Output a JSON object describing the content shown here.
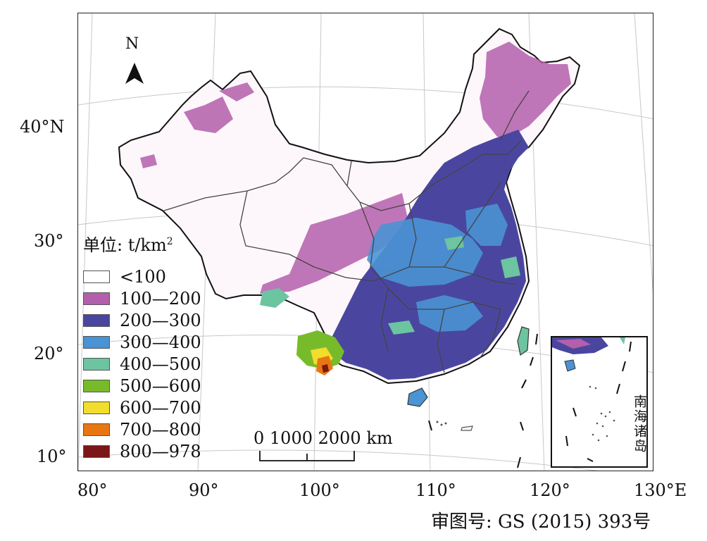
{
  "map": {
    "north_label": "N",
    "latitude_labels": [
      "40°N",
      "30°",
      "20°",
      "10°"
    ],
    "longitude_labels": [
      "80°",
      "90°",
      "100°",
      "110°",
      "120°",
      "130°E"
    ]
  },
  "legend": {
    "title": "单位: t/km",
    "title_superscript": "2",
    "items": [
      {
        "label": "<100",
        "color": "#ffffff"
      },
      {
        "label": "100—200",
        "color": "#b45fab"
      },
      {
        "label": "200—300",
        "color": "#4a46a0"
      },
      {
        "label": "300—400",
        "color": "#4a93d4"
      },
      {
        "label": "400—500",
        "color": "#6cc4a0"
      },
      {
        "label": "500—600",
        "color": "#77bb2a"
      },
      {
        "label": "600—700",
        "color": "#f2dd2c"
      },
      {
        "label": "700—800",
        "color": "#e87713"
      },
      {
        "label": "800—978",
        "color": "#7c1717"
      }
    ]
  },
  "scale_bar": {
    "labels": "0   1000 2000 km"
  },
  "inset": {
    "label": "南海诸岛"
  },
  "approval_number": "审图号: GS (2015) 393号"
}
